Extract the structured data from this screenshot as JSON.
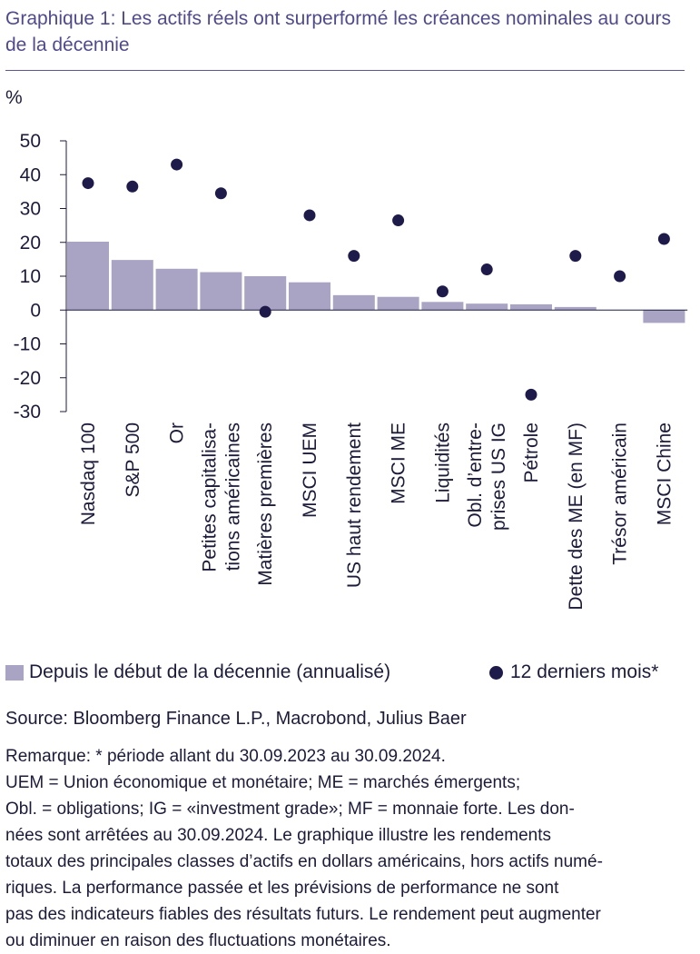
{
  "title": "Graphique 1: Les actifs réels ont surperformé les créances nominales au cours de la décennie",
  "unit_label": "%",
  "legend": {
    "bars": "Depuis le début de la décennie (annualisé)",
    "dots": "12 derniers mois*"
  },
  "source": "Source: Bloomberg Finance L.P., Macrobond, Julius Baer",
  "note_lines": [
    "Remarque: * période allant du 30.09.2023 au 30.09.2024.",
    "UEM = Union économique et monétaire; ME = marchés émergents;",
    "Obl. = obligations; IG = «investment grade»; MF = monnaie forte. Les don-",
    "nées sont arrêtées au 30.09.2024. Le graphique illustre les rendements",
    "totaux des principales classes d’actifs en dollars américains, hors actifs numé-",
    "riques. La performance passée et les prévisions de performance ne sont",
    "pas des indicateurs fiables des résultats futurs. Le rendement peut augmenter",
    "ou diminuer en raison des fluctuations monétaires."
  ],
  "colors": {
    "bars": "#a9a4c4",
    "dots": "#1e1b4b",
    "title": "#4f4a8e"
  },
  "chart_data": {
    "type": "bar",
    "ylabel": "%",
    "ylim": [
      -30,
      50
    ],
    "yticks": [
      50,
      40,
      30,
      20,
      10,
      0,
      -10,
      -20,
      -30
    ],
    "grid": false,
    "legend_position": "bottom",
    "categories": [
      [
        "Nasdaq 100"
      ],
      [
        "S&P 500"
      ],
      [
        "Or"
      ],
      [
        "Petites capitalisa-",
        "tions américaines"
      ],
      [
        "Matières premières"
      ],
      [
        "MSCI UEM"
      ],
      [
        "US haut rendement"
      ],
      [
        "MSCI ME"
      ],
      [
        "Liquidités"
      ],
      [
        "Obl. d’entre-",
        "prises US IG"
      ],
      [
        "Pétrole"
      ],
      [
        "Dette des ME (en MF)"
      ],
      [
        "Trésor américain"
      ],
      [
        "MSCI Chine"
      ]
    ],
    "series": [
      {
        "name": "Depuis le début de la décennie (annualisé)",
        "type": "bar",
        "values": [
          20.2,
          14.8,
          12.2,
          11.2,
          10.0,
          8.2,
          4.4,
          3.9,
          2.4,
          1.9,
          1.7,
          0.9,
          0.0,
          -3.8
        ]
      },
      {
        "name": "12 derniers mois*",
        "type": "scatter",
        "values": [
          37.5,
          36.5,
          43.0,
          34.5,
          -0.5,
          28.0,
          16.0,
          26.5,
          5.5,
          12.0,
          -25.0,
          16.0,
          10.0,
          21.0
        ]
      }
    ]
  }
}
